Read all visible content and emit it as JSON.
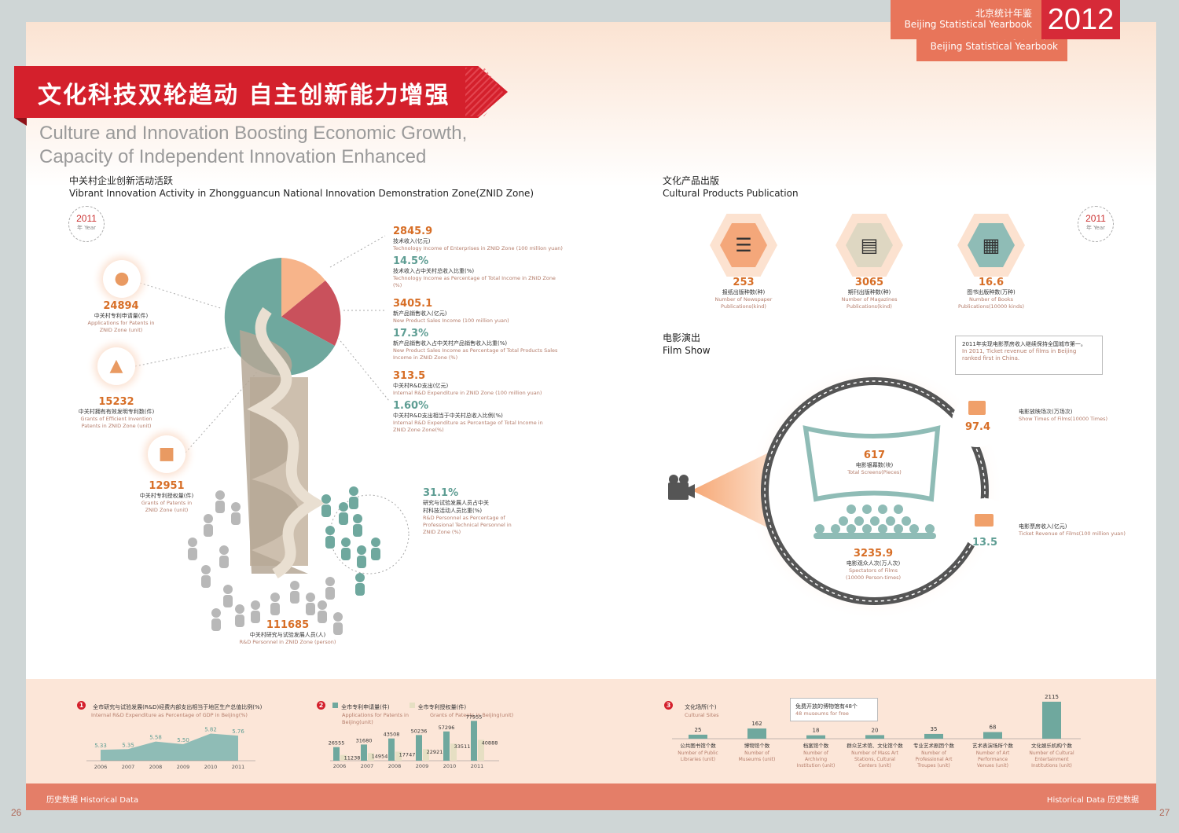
{
  "header": {
    "cn": "北京统计年鉴",
    "en": "Beijing Statistical Yearbook",
    "year": "2012"
  },
  "banner": {
    "cn": "文化科技双轮趋动  自主创新能力增强",
    "en_line1": "Culture and Innovation Boosting Economic Growth,",
    "en_line2": "Capacity of Independent Innovation Enhanced"
  },
  "left_section": {
    "cn": "中关村企业创新活动活跃",
    "en": "Vibrant Innovation Activity in Zhongguancun National Innovation Demonstration Zone(ZNID Zone)"
  },
  "right_section": {
    "cn": "文化产品出版",
    "en": "Cultural Products Publication"
  },
  "film_section": {
    "cn": "电影演出",
    "en": "Film Show"
  },
  "year_badge": {
    "year": "2011",
    "unit": "年 Year"
  },
  "patents": [
    {
      "value": "24894",
      "cn": "中关村专利申请量(件)",
      "en1": "Applications for Patents in",
      "en2": "ZNID Zone (unit)"
    },
    {
      "value": "15232",
      "cn": "中关村拥有有效发明专利数(件)",
      "en1": "Grants of Efficient Invention",
      "en2": "Patents in ZNID Zone (unit)"
    },
    {
      "value": "12951",
      "cn": "中关村专利授权量(件)",
      "en1": "Grants of Patents in",
      "en2": "ZNID Zone (unit)"
    }
  ],
  "tech_items": [
    {
      "value": "2845.9",
      "cn": "技术收入(亿元)",
      "en": "Technology Income of Enterprises in ZNID Zone (100 million yuan)",
      "pct": "14.5%",
      "pct_cn": "技术收入占中关村总收入比重(%)",
      "pct_en": "Technology Income as Percentage of Total Income in ZNID Zone (%)"
    },
    {
      "value": "3405.1",
      "cn": "新产品销售收入(亿元)",
      "en": "New Product Sales Income (100 million yuan)",
      "pct": "17.3%",
      "pct_cn": "新产品销售收入占中关村产品销售收入比重(%)",
      "pct_en": "New Product Sales Income as Percentage of Total Products Sales Income in ZNID Zone (%)"
    },
    {
      "value": "313.5",
      "cn": "中关村R&D支出(亿元)",
      "en": "Internal R&D Expenditure in ZNID Zone (100 million yuan)",
      "pct": "1.60%",
      "pct_cn": "中关村R&D支出相当于中关村总收入比例(%)",
      "pct_en": "Internal R&D Expenditure as Percentage of Total Income in ZNID Zone Zone(%)"
    }
  ],
  "rd_personnel": {
    "pct": "31.1%",
    "pct_cn1": "研究与试验发展人员占中关",
    "pct_cn2": "村科技活动人员比重(%)",
    "pct_en": "R&D Personnel as Percentage of Professional Technical Personnel in ZNID Zone (%)",
    "value": "111685",
    "cn": "中关村研究与试验发展人员(人)",
    "en": "R&D Personnel in ZNID Zone (person)"
  },
  "publications": [
    {
      "value": "253",
      "cn": "报纸出版种数(种)",
      "en1": "Number of Newspaper",
      "en2": "Publications(kind)",
      "color": "#f4a77a",
      "icon": "newspaper-icon"
    },
    {
      "value": "3065",
      "cn": "期刊出版种数(种)",
      "en1": "Number of Magazines",
      "en2": "Publications(kind)",
      "color": "#ded7c2",
      "icon": "magazine-icon"
    },
    {
      "value": "16.6",
      "cn": "图书出版种数(万种)",
      "en1": "Number of Books",
      "en2": "Publications(10000 kinds)",
      "color": "#8fbcb6",
      "icon": "book-icon"
    }
  ],
  "film": {
    "callout_cn": "2011年实现电影票房收入继续保持全国城市第一。",
    "callout_en": "In 2011, Ticket revenue of films in Beijing ranked first in China.",
    "shows_value": "97.4",
    "shows_cn": "电影放映场次(万场次)",
    "shows_en": "Show Times of Films(10000 Times)",
    "screens_value": "617",
    "screens_cn": "电影银幕数(块)",
    "screens_en": "Total Screens(Pieces)",
    "revenue_value": "13.5",
    "revenue_cn": "电影票房收入(亿元)",
    "revenue_en": "Ticket Revenue of Films(100 million yuan)",
    "spectators_value": "3235.9",
    "spectators_cn": "电影观众人次(万人次)",
    "spectators_en1": "Spectators of Films",
    "spectators_en2": "(10000 Person-times)"
  },
  "chart_data": [
    {
      "type": "area",
      "number": "1",
      "title_cn": "全市研究与试验发展(R&D)经费内部支出相当于地区生产总值比例(%)",
      "title_en": "Internal R&D Expenditure as Percentage of GDP in Beijing(%)",
      "x": [
        "2006",
        "2007",
        "2008",
        "2009",
        "2010",
        "2011"
      ],
      "values": [
        5.33,
        5.35,
        5.58,
        5.5,
        5.82,
        5.76
      ],
      "labels": [
        "5.33",
        "5.35",
        "5.58",
        "5.50",
        "5.82",
        "5.76"
      ],
      "color": "#8fbcb6"
    },
    {
      "type": "bar",
      "number": "2",
      "x": [
        "2006",
        "2007",
        "2008",
        "2009",
        "2010",
        "2011"
      ],
      "series": [
        {
          "name": "全市专利申请量(件)",
          "name_en1": "Applications for Patents in",
          "name_en2": "Beijing(unit)",
          "values": [
            26555,
            31680,
            43508,
            50236,
            57296,
            77955
          ],
          "labels": [
            "26555",
            "31680",
            "43508",
            "50236",
            "57296",
            "77955"
          ],
          "color": "#6fa89e"
        },
        {
          "name": "全市专利授权量(件)",
          "name_en": "Grants of Patents in Beijing(unit)",
          "values": [
            11238,
            14954,
            17747,
            22921,
            33511,
            40888
          ],
          "labels": [
            "11238",
            "14954",
            "17747",
            "22921",
            "33511",
            "40888"
          ],
          "color": "#e6dfc3"
        }
      ]
    },
    {
      "type": "bar",
      "number": "3",
      "title_cn": "文化场所(个)",
      "title_en": "Cultural Sites",
      "annotation_cn": "免费开放的博物馆有48个",
      "annotation_en": "48 museums for free",
      "categories": [
        {
          "cn": "公共图书馆个数",
          "en1": "Number of Public",
          "en2": "Libraries (unit)",
          "en3": ""
        },
        {
          "cn": "博物馆个数",
          "en1": "Number of",
          "en2": "Museums (unit)",
          "en3": ""
        },
        {
          "cn": "档案馆个数",
          "en1": "Number of",
          "en2": "Archiving",
          "en3": "Institution (unit)"
        },
        {
          "cn": "群众艺术馆、文化馆个数",
          "en1": "Number of Mass Art",
          "en2": "Stations, Cultural",
          "en3": "Centers (unit)"
        },
        {
          "cn": "专业艺术剧团个数",
          "en1": "Number of",
          "en2": "Professional Art",
          "en3": "Troupes (unit)"
        },
        {
          "cn": "艺术表演场所个数",
          "en1": "Number of Art",
          "en2": "Performance",
          "en3": "Venues (unit)"
        },
        {
          "cn": "文化娱乐机构个数",
          "en1": "Number of Cultural",
          "en2": "Entertainment",
          "en3": "Institutions (unit)"
        }
      ],
      "values": [
        25,
        162,
        18,
        20,
        35,
        68,
        2115
      ],
      "labels": [
        "25",
        "162",
        "18",
        "20",
        "35",
        "68",
        "2115"
      ],
      "color": "#6fa89e"
    }
  ],
  "footer": {
    "left": "历史数据   Historical Data",
    "right": "Historical Data   历史数据",
    "page_left": "26",
    "page_right": "27"
  }
}
